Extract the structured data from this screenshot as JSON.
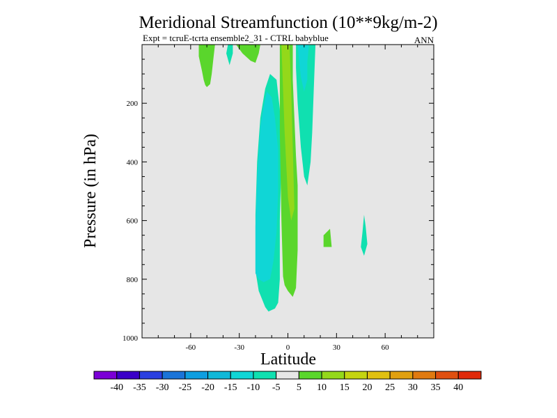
{
  "chart_data": {
    "type": "filled-contour",
    "title": "Meridional Streamfunction (10**9kg/m-2)",
    "subtitle_left": "Expt = tcruE-tcrta ensemble2_31 - CTRL babyblue",
    "subtitle_right": "ANN",
    "xlabel": "Latitude",
    "ylabel": "Pressure (in hPa)",
    "xlim": [
      -90,
      90
    ],
    "ylim": [
      1000,
      0
    ],
    "x_ticks": [
      -60,
      -30,
      0,
      30,
      60
    ],
    "y_ticks": [
      200,
      400,
      600,
      800,
      1000
    ],
    "background_level": "-5 to 5",
    "contour_levels": [
      -40,
      -35,
      -30,
      -25,
      -20,
      -15,
      -10,
      -5,
      5,
      10,
      15,
      20,
      25,
      30,
      35,
      40
    ],
    "colorbar_colors": [
      "#7b00d6",
      "#3b00c8",
      "#2a3fe0",
      "#1a74d8",
      "#0e9ee0",
      "#10b8d8",
      "#10d6d6",
      "#10e0b0",
      "#e6e6e6",
      "#5ad62c",
      "#94d81a",
      "#c4d410",
      "#e0c010",
      "#e0a010",
      "#e07a10",
      "#e05010",
      "#e02a0a"
    ],
    "regions": [
      {
        "name": "region-nh-polar-plus",
        "level": "5 to 10",
        "color": "#5ad62c",
        "outline": [
          [
            -55,
            0
          ],
          [
            -55,
            40
          ],
          [
            -53,
            90
          ],
          [
            -52,
            120
          ],
          [
            -51,
            138
          ],
          [
            -50,
            145
          ],
          [
            -48,
            135
          ],
          [
            -47,
            100
          ],
          [
            -46,
            50
          ],
          [
            -45,
            0
          ]
        ]
      },
      {
        "name": "region-high-minus-1",
        "level": "-10 to -5",
        "color": "#10e0b0",
        "outline": [
          [
            -37,
            0
          ],
          [
            -38,
            30
          ],
          [
            -36,
            70
          ],
          [
            -34,
            30
          ],
          [
            -34,
            0
          ]
        ]
      },
      {
        "name": "region-high-plus-2",
        "level": "5 to 10",
        "color": "#5ad62c",
        "outline": [
          [
            -32,
            0
          ],
          [
            -28,
            30
          ],
          [
            -23,
            55
          ],
          [
            -20,
            62
          ],
          [
            -18,
            30
          ],
          [
            -17,
            0
          ]
        ]
      },
      {
        "name": "region-main-minus-outer",
        "level": "-10 to -5",
        "color": "#10e0b0",
        "outline": [
          [
            -20,
            700
          ],
          [
            -20,
            580
          ],
          [
            -19,
            400
          ],
          [
            -17,
            250
          ],
          [
            -14,
            150
          ],
          [
            -11,
            100
          ],
          [
            -7,
            120
          ],
          [
            -5,
            220
          ],
          [
            -4,
            400
          ],
          [
            -5,
            600
          ],
          [
            -5,
            800
          ],
          [
            -6,
            880
          ],
          [
            -8,
            900
          ],
          [
            -10,
            905
          ],
          [
            -12,
            910
          ],
          [
            -14,
            895
          ],
          [
            -18,
            840
          ],
          [
            -20,
            770
          ]
        ]
      },
      {
        "name": "region-main-minus-inner",
        "level": "-15 to -10",
        "color": "#10d6d6",
        "outline": [
          [
            -20,
            780
          ],
          [
            -20,
            620
          ],
          [
            -19,
            450
          ],
          [
            -17,
            280
          ],
          [
            -15,
            210
          ],
          [
            -13,
            160
          ],
          [
            -10,
            180
          ],
          [
            -8,
            250
          ],
          [
            -6,
            360
          ],
          [
            -6,
            500
          ],
          [
            -7,
            640
          ],
          [
            -9,
            740
          ],
          [
            -11,
            800
          ],
          [
            -15,
            810
          ],
          [
            -18,
            800
          ]
        ]
      },
      {
        "name": "region-main-plus-outer",
        "level": "5 to 10",
        "color": "#5ad62c",
        "outline": [
          [
            -5,
            0
          ],
          [
            -5,
            300
          ],
          [
            -4,
            600
          ],
          [
            -3,
            790
          ],
          [
            -2,
            820
          ],
          [
            0,
            840
          ],
          [
            3,
            860
          ],
          [
            5,
            830
          ],
          [
            6,
            700
          ],
          [
            6,
            480
          ],
          [
            5,
            380
          ],
          [
            4,
            250
          ],
          [
            3,
            120
          ],
          [
            3,
            0
          ]
        ]
      },
      {
        "name": "region-main-plus-inner",
        "level": "10 to 15",
        "color": "#94d81a",
        "outline": [
          [
            -4,
            0
          ],
          [
            -3,
            150
          ],
          [
            -2,
            300
          ],
          [
            0,
            520
          ],
          [
            2,
            600
          ],
          [
            4,
            560
          ],
          [
            3,
            350
          ],
          [
            2,
            150
          ],
          [
            1,
            0
          ]
        ]
      },
      {
        "name": "region-upper-minus-outer",
        "level": "-10 to -5",
        "color": "#10e0b0",
        "outline": [
          [
            5,
            0
          ],
          [
            5,
            80
          ],
          [
            6,
            200
          ],
          [
            8,
            350
          ],
          [
            10,
            450
          ],
          [
            12,
            480
          ],
          [
            14,
            400
          ],
          [
            15,
            300
          ],
          [
            16,
            150
          ],
          [
            17,
            0
          ]
        ]
      },
      {
        "name": "region-upper-minus-inner",
        "level": "-15 to -10",
        "color": "#10d6d6",
        "outline": [
          [
            6,
            0
          ],
          [
            7,
            60
          ],
          [
            8,
            110
          ],
          [
            10,
            160
          ],
          [
            12,
            120
          ],
          [
            12,
            60
          ],
          [
            13,
            0
          ]
        ]
      },
      {
        "name": "region-small-plus-30s",
        "level": "5 to 10",
        "color": "#5ad62c",
        "outline": [
          [
            22,
            650
          ],
          [
            26,
            628
          ],
          [
            27,
            690
          ],
          [
            22,
            690
          ]
        ]
      },
      {
        "name": "region-small-minus-45n",
        "level": "-10 to -5",
        "color": "#10e0b0",
        "outline": [
          [
            46,
            640
          ],
          [
            47,
            580
          ],
          [
            48,
            620
          ],
          [
            49,
            680
          ],
          [
            47,
            720
          ],
          [
            45,
            690
          ]
        ]
      }
    ]
  }
}
